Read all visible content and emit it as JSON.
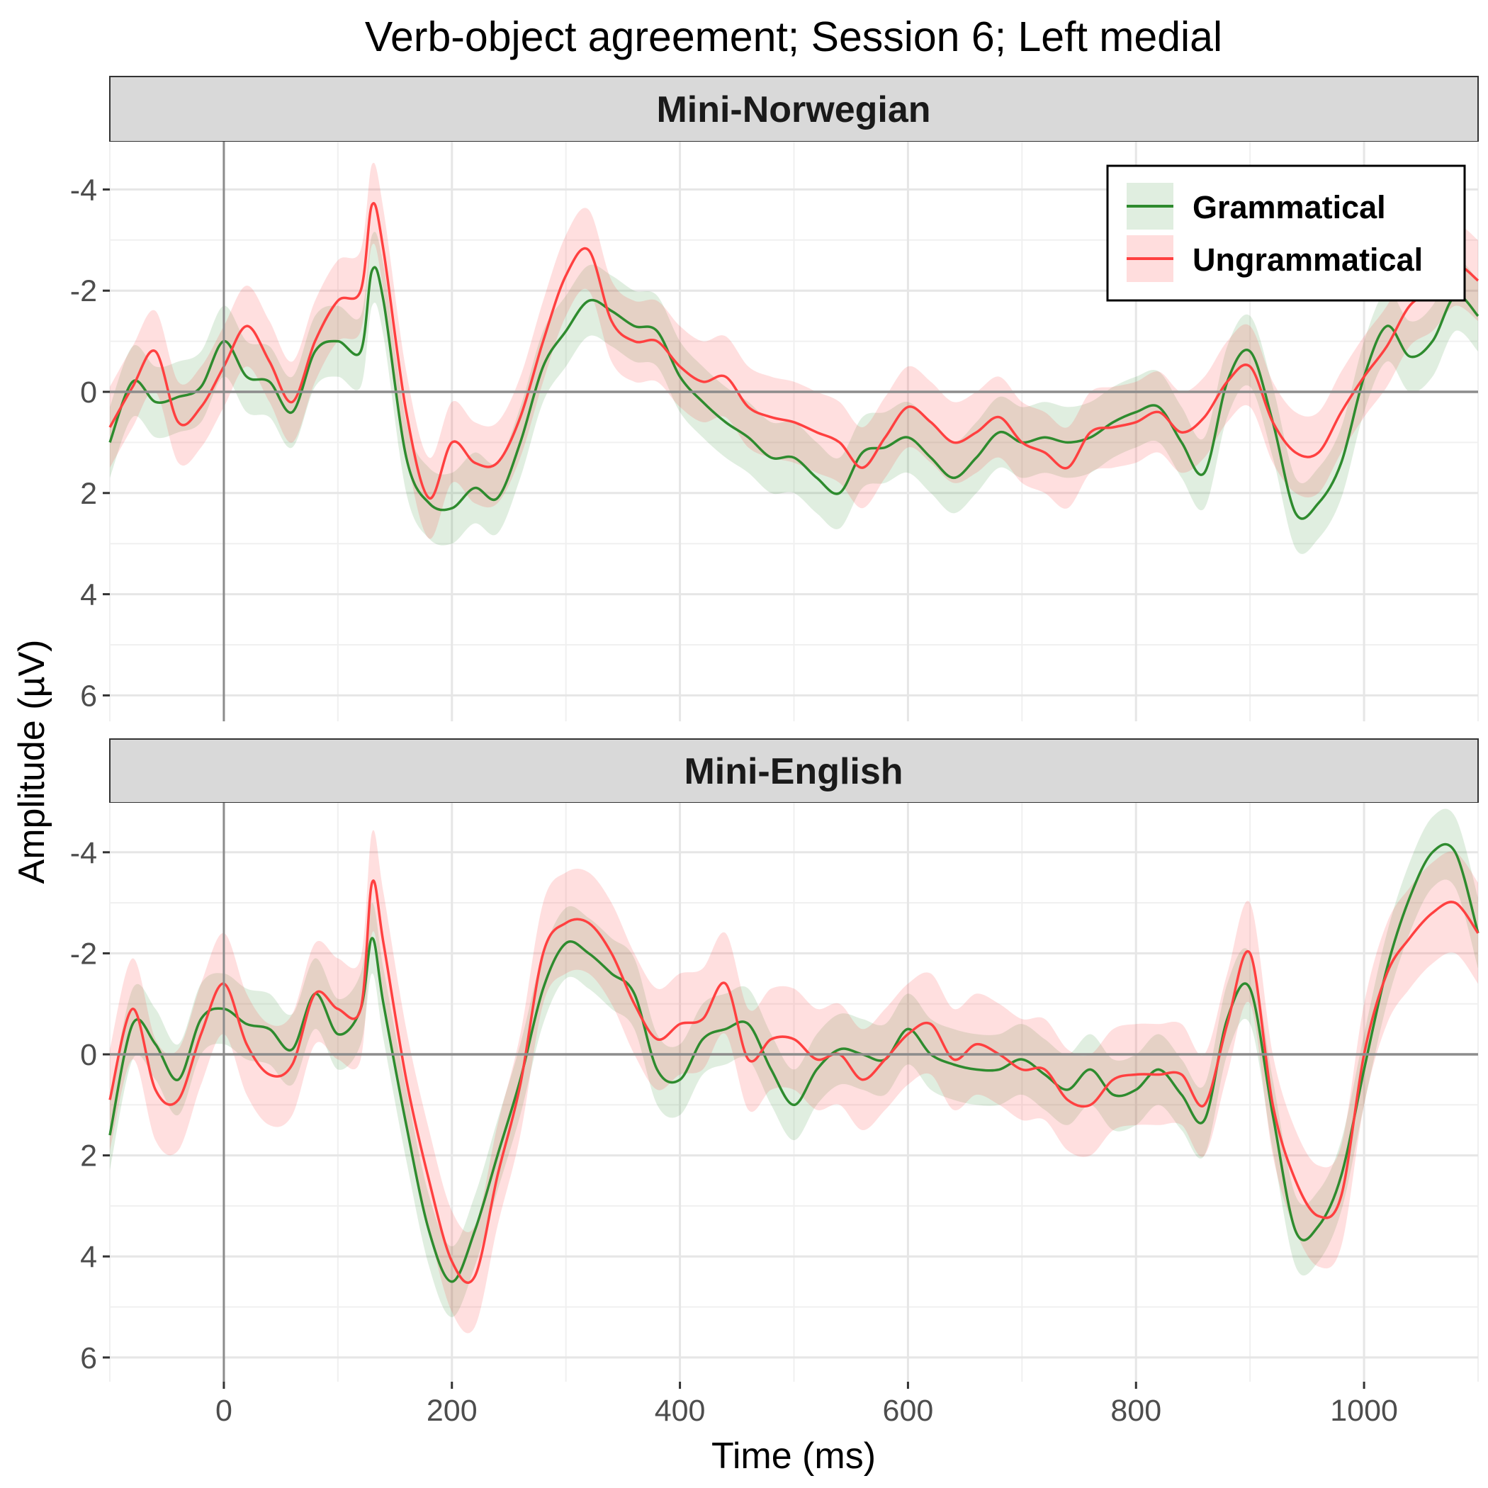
{
  "chart_data": {
    "type": "line",
    "title": "Verb-object agreement; Session 6; Left medial",
    "xlabel": "Time (ms)",
    "ylabel": "Amplitude (µV)",
    "xlim": [
      -100,
      1100
    ],
    "ylim_reversed": [
      -5,
      6.5
    ],
    "y_axis_reversed": true,
    "x_ticks": [
      0,
      200,
      400,
      600,
      800,
      1000
    ],
    "y_ticks": [
      -4,
      -2,
      0,
      2,
      4,
      6
    ],
    "y_tick_labels": [
      "-4",
      "-2",
      "0",
      "2",
      "4",
      "6"
    ],
    "grid": true,
    "legend_position": "top-right",
    "colors": {
      "Grammatical": "#2e8b2e",
      "Ungrammatical": "#ff4040"
    },
    "x": [
      -100,
      -80,
      -60,
      -40,
      -20,
      0,
      20,
      40,
      60,
      80,
      100,
      120,
      130,
      140,
      160,
      180,
      200,
      220,
      240,
      260,
      280,
      300,
      320,
      340,
      360,
      380,
      400,
      420,
      440,
      460,
      480,
      500,
      520,
      540,
      560,
      580,
      600,
      620,
      640,
      660,
      680,
      700,
      720,
      740,
      760,
      780,
      800,
      820,
      840,
      860,
      880,
      900,
      920,
      940,
      960,
      980,
      1000,
      1020,
      1040,
      1060,
      1080,
      1100
    ],
    "panels": [
      {
        "label": "Mini-Norwegian",
        "series": [
          {
            "name": "Grammatical",
            "values": [
              1,
              -0.2,
              0.2,
              0.1,
              -0.1,
              -1.0,
              -0.3,
              -0.2,
              0.4,
              -0.8,
              -1.0,
              -0.8,
              -2.4,
              -1.8,
              1.3,
              2.2,
              2.3,
              1.9,
              2.1,
              1.0,
              -0.5,
              -1.2,
              -1.8,
              -1.6,
              -1.3,
              -1.2,
              -0.3,
              0.2,
              0.6,
              0.9,
              1.3,
              1.3,
              1.7,
              2.0,
              1.2,
              1.1,
              0.9,
              1.3,
              1.7,
              1.3,
              0.8,
              1.0,
              0.9,
              1.0,
              0.9,
              0.6,
              0.4,
              0.3,
              1.0,
              1.6,
              -0.2,
              -0.8,
              0.6,
              2.4,
              2.2,
              1.4,
              -0.3,
              -1.3,
              -0.7,
              -1.0,
              -1.9,
              -1.5
            ],
            "band": 0.7
          },
          {
            "name": "Ungrammatical",
            "values": [
              0.7,
              -0.1,
              -0.8,
              0.6,
              0.3,
              -0.5,
              -1.3,
              -0.6,
              0.2,
              -1.0,
              -1.8,
              -2.0,
              -3.7,
              -2.8,
              0.4,
              2.1,
              1.0,
              1.4,
              1.4,
              0.5,
              -1.0,
              -2.3,
              -2.8,
              -1.4,
              -1.0,
              -1.0,
              -0.5,
              -0.2,
              -0.3,
              0.3,
              0.5,
              0.6,
              0.8,
              1.0,
              1.5,
              0.9,
              0.3,
              0.6,
              1.0,
              0.8,
              0.5,
              1.0,
              1.2,
              1.5,
              0.8,
              0.7,
              0.6,
              0.4,
              0.8,
              0.5,
              -0.2,
              -0.5,
              0.6,
              1.2,
              1.2,
              0.4,
              -0.3,
              -0.9,
              -1.7,
              -2.0,
              -2.5,
              -2.2
            ],
            "band": 0.8
          }
        ]
      },
      {
        "label": "Mini-English",
        "series": [
          {
            "name": "Grammatical",
            "values": [
              1.6,
              -0.6,
              -0.2,
              0.5,
              -0.7,
              -0.9,
              -0.6,
              -0.5,
              -0.1,
              -1.2,
              -0.4,
              -0.9,
              -2.3,
              -1.0,
              1.4,
              3.5,
              4.5,
              3.5,
              2.0,
              0.5,
              -1.3,
              -2.2,
              -2.0,
              -1.6,
              -1.2,
              0.3,
              0.5,
              -0.3,
              -0.5,
              -0.6,
              0.3,
              1.0,
              0.3,
              -0.1,
              0.0,
              0.1,
              -0.5,
              0.0,
              0.2,
              0.3,
              0.3,
              0.1,
              0.4,
              0.7,
              0.3,
              0.8,
              0.7,
              0.3,
              0.8,
              1.3,
              -0.7,
              -1.3,
              1.2,
              3.5,
              3.4,
              2.4,
              0.3,
              -1.7,
              -3.1,
              -4.0,
              -4.0,
              -2.4
            ],
            "band": 0.7
          },
          {
            "name": "Ungrammatical",
            "values": [
              0.9,
              -0.9,
              0.7,
              0.9,
              -0.4,
              -1.4,
              -0.2,
              0.4,
              0.2,
              -1.2,
              -0.9,
              -0.9,
              -3.4,
              -2.2,
              0.5,
              2.5,
              4.1,
              4.4,
              2.4,
              0.6,
              -2.0,
              -2.6,
              -2.6,
              -2.0,
              -1.0,
              -0.3,
              -0.6,
              -0.7,
              -1.4,
              0.1,
              -0.3,
              -0.3,
              0.1,
              0.0,
              0.5,
              0.1,
              -0.4,
              -0.6,
              0.1,
              -0.2,
              0.0,
              0.3,
              0.3,
              0.9,
              1.0,
              0.5,
              0.4,
              0.4,
              0.4,
              1.0,
              -0.6,
              -2.0,
              1.0,
              2.5,
              3.2,
              2.8,
              0.0,
              -1.6,
              -2.3,
              -2.8,
              -3.0,
              -2.4
            ],
            "band": 1.0
          }
        ]
      }
    ]
  }
}
